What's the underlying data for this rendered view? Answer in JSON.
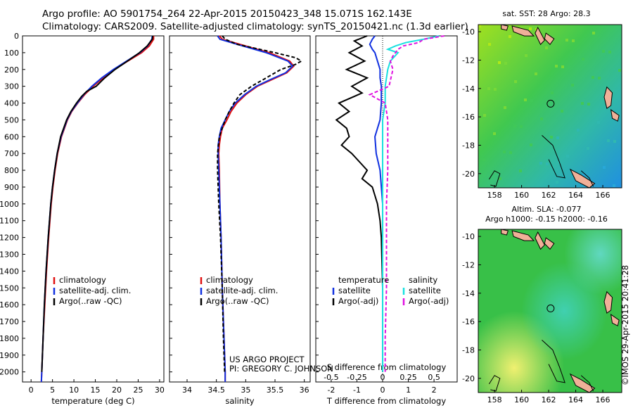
{
  "header": {
    "line1": "Argo profile: AO 5901754_264 22-Apr-2015 20150423_348 15.071S 162.143E",
    "line2": "Climatology: CARS2009. Satellite-adjusted climatology: synTS_20150421.nc (1.3d earlier)"
  },
  "colors": {
    "climatology": "#e01010",
    "satellite": "#1030e0",
    "argo": "#000000",
    "sat_salinity": "#18e0e0",
    "argo_salinity": "#e010e0"
  },
  "depth_axis": {
    "ticks": [
      0,
      100,
      200,
      300,
      400,
      500,
      600,
      700,
      800,
      900,
      1000,
      1100,
      1200,
      1300,
      1400,
      1500,
      1600,
      1700,
      1800,
      1900,
      2000
    ],
    "min": 0,
    "max": 2060
  },
  "chart_data": [
    {
      "id": "temperature",
      "type": "line",
      "xlabel": "temperature (deg C)",
      "xlim": [
        -2,
        31
      ],
      "xticks": [
        0,
        5,
        10,
        15,
        20,
        25,
        30
      ],
      "ylim": [
        0,
        2060
      ],
      "legend": [
        "climatology",
        "satellite-adj. clim.",
        "Argo(..raw -QC)"
      ],
      "series": [
        {
          "name": "climatology",
          "color_key": "climatology",
          "dashed": false,
          "depth": [
            0,
            20,
            60,
            100,
            150,
            200,
            250,
            300,
            350,
            400,
            450,
            500,
            600,
            700,
            800,
            900,
            1000,
            1200,
            1400,
            1600,
            1800,
            2000,
            2060
          ],
          "values": [
            28.6,
            28.6,
            27.6,
            25.8,
            22.6,
            19.4,
            16.8,
            14.5,
            12.5,
            10.9,
            9.5,
            8.5,
            7.1,
            6.2,
            5.6,
            5.1,
            4.7,
            4.1,
            3.6,
            3.2,
            2.8,
            2.5,
            2.4
          ]
        },
        {
          "name": "satellite-adj. clim.",
          "color_key": "satellite",
          "dashed": false,
          "depth": [
            0,
            20,
            60,
            100,
            150,
            200,
            250,
            300,
            350,
            400,
            450,
            500,
            600,
            700,
            800,
            900,
            1000,
            1200,
            1400,
            1600,
            1800,
            2000,
            2060
          ],
          "values": [
            28.3,
            28.2,
            27.2,
            25.4,
            22.3,
            19.2,
            16.5,
            14.2,
            12.3,
            10.8,
            9.4,
            8.4,
            7.0,
            6.1,
            5.5,
            5.0,
            4.6,
            4.0,
            3.5,
            3.1,
            2.8,
            2.5,
            2.4
          ]
        },
        {
          "name": "Argo(..raw -QC)",
          "color_key": "argo",
          "dashed": false,
          "depth": [
            0,
            20,
            60,
            100,
            150,
            200,
            250,
            300,
            330,
            360,
            400,
            450,
            500,
            600,
            700,
            800,
            900,
            1000,
            1200,
            1400,
            1600,
            1800,
            2000
          ],
          "values": [
            28.4,
            28.3,
            27.1,
            25.3,
            22.5,
            19.6,
            17.2,
            15.2,
            13.0,
            11.8,
            10.6,
            9.3,
            8.3,
            6.9,
            6.1,
            5.5,
            5.0,
            4.6,
            4.0,
            3.5,
            3.1,
            2.8,
            2.5
          ]
        }
      ]
    },
    {
      "id": "salinity",
      "type": "line",
      "xlabel": "salinity",
      "xlim": [
        33.7,
        36.1
      ],
      "xticks": [
        34,
        34.5,
        35,
        35.5,
        36
      ],
      "xticklabels": [
        "34",
        "34.5",
        "35",
        "35.5",
        "36"
      ],
      "ylim": [
        0,
        2060
      ],
      "legend": [
        "climatology",
        "satellite-adj. clim.",
        "Argo(..raw -QC)"
      ],
      "series": [
        {
          "name": "climatology",
          "color_key": "climatology",
          "dashed": false,
          "depth": [
            0,
            20,
            50,
            100,
            150,
            180,
            220,
            260,
            300,
            350,
            400,
            450,
            500,
            550,
            600,
            650,
            700,
            800,
            1000,
            1200,
            1500,
            1800,
            2000,
            2060
          ],
          "values": [
            34.55,
            34.6,
            34.9,
            35.4,
            35.75,
            35.82,
            35.7,
            35.45,
            35.2,
            35.0,
            34.85,
            34.75,
            34.68,
            34.6,
            34.57,
            34.55,
            34.54,
            34.55,
            34.56,
            34.58,
            34.6,
            34.63,
            34.65,
            34.65
          ]
        },
        {
          "name": "satellite-adj. clim.",
          "color_key": "satellite",
          "dashed": false,
          "depth": [
            0,
            20,
            50,
            100,
            150,
            180,
            220,
            260,
            300,
            350,
            400,
            450,
            500,
            550,
            600,
            650,
            700,
            800,
            1000,
            1200,
            1500,
            1800,
            2000,
            2060
          ],
          "values": [
            34.52,
            34.56,
            34.85,
            35.35,
            35.72,
            35.8,
            35.68,
            35.42,
            35.18,
            34.98,
            34.82,
            34.72,
            34.65,
            34.58,
            34.55,
            34.53,
            34.53,
            34.54,
            34.56,
            34.58,
            34.6,
            34.63,
            34.65,
            34.65
          ]
        },
        {
          "name": "Argo(..raw -QC)",
          "color_key": "argo",
          "dashed": true,
          "depth": [
            0,
            20,
            50,
            100,
            130,
            150,
            170,
            200,
            250,
            300,
            350,
            400,
            450,
            500,
            600,
            700,
            800,
            1000,
            1200,
            1500,
            1800,
            2000
          ],
          "values": [
            34.6,
            34.65,
            34.85,
            35.5,
            35.85,
            35.95,
            35.85,
            35.6,
            35.35,
            35.1,
            34.9,
            34.8,
            34.72,
            34.65,
            34.55,
            34.52,
            34.52,
            34.54,
            34.57,
            34.6,
            34.62,
            34.64
          ]
        }
      ]
    },
    {
      "id": "difference",
      "type": "line",
      "xlabel": "T difference from climatology",
      "xlabel2": "S difference from climatology",
      "xlim": [
        -2.6,
        2.9
      ],
      "xticks": [
        -2,
        -1,
        0,
        1,
        2
      ],
      "xticks_top": [
        -0.5,
        -0.25,
        0,
        0.25,
        0.5
      ],
      "xticklabels_top": [
        "-0.5",
        "-0.25",
        "0",
        "0.25",
        "0.5"
      ],
      "s_scale_factor": 4,
      "ylim": [
        0,
        2060
      ],
      "legend_left_title": "temperature",
      "legend_right_title": "salinity",
      "legend": [
        "satellite",
        "Argo(-adj)",
        "satellite",
        "Argo(-adj)"
      ],
      "series": [
        {
          "name": "T satellite",
          "color_key": "satellite",
          "dashed": false,
          "depth": [
            0,
            20,
            50,
            80,
            100,
            150,
            200,
            250,
            300,
            400,
            500,
            600,
            700,
            800,
            1000,
            1500,
            2000
          ],
          "values": [
            -0.3,
            -0.4,
            -0.5,
            -0.4,
            -0.3,
            -0.2,
            -0.1,
            -0.1,
            -0.05,
            -0.05,
            -0.1,
            -0.3,
            -0.25,
            -0.1,
            0.0,
            0.0,
            0.0
          ]
        },
        {
          "name": "T Argo(-adj)",
          "color_key": "argo",
          "dashed": false,
          "depth": [
            0,
            30,
            60,
            100,
            150,
            200,
            250,
            300,
            340,
            400,
            450,
            500,
            550,
            600,
            650,
            700,
            750,
            800,
            850,
            900,
            950,
            1000,
            1100,
            1200,
            1500,
            2000
          ],
          "values": [
            -0.6,
            -1.1,
            -0.8,
            -1.3,
            -0.7,
            -1.4,
            -0.6,
            -1.2,
            -0.8,
            -1.7,
            -1.3,
            -1.8,
            -1.4,
            -1.3,
            -1.6,
            -1.2,
            -0.9,
            -0.6,
            -0.8,
            -0.4,
            -0.3,
            -0.2,
            -0.1,
            -0.05,
            0.0,
            0.0
          ]
        },
        {
          "name": "S satellite",
          "color_key": "sat_salinity",
          "dashed": false,
          "depth": [
            0,
            20,
            40,
            60,
            80,
            100,
            150,
            200,
            300,
            400,
            500,
            700,
            1000,
            1500,
            2000
          ],
          "values": [
            2.2,
            1.6,
            0.9,
            0.5,
            0.2,
            0.6,
            0.3,
            0.2,
            0.1,
            0.1,
            0.0,
            0.0,
            0.0,
            0.0,
            0.0
          ]
        },
        {
          "name": "S Argo(-adj)",
          "color_key": "argo_salinity",
          "dashed": true,
          "depth": [
            0,
            20,
            40,
            60,
            80,
            100,
            120,
            150,
            200,
            300,
            350,
            400,
            500,
            600,
            700,
            800,
            1000,
            1200,
            1500,
            1800,
            2000
          ],
          "values": [
            2.4,
            1.6,
            1.4,
            0.8,
            0.6,
            0.5,
            0.4,
            0.3,
            0.4,
            0.25,
            -0.5,
            0.1,
            0.2,
            0.2,
            0.2,
            0.2,
            0.15,
            0.15,
            0.15,
            0.1,
            0.1
          ]
        }
      ]
    }
  ],
  "annotation": {
    "line1": "US ARGO PROJECT",
    "line2": "PI: GREGORY C. JOHNSON"
  },
  "maps": [
    {
      "id": "sst",
      "title": "sat. SST: 28 Argo: 28.3",
      "lon_ticks": [
        158,
        160,
        162,
        164,
        166
      ],
      "lat_ticks": [
        -10,
        -12,
        -14,
        -16,
        -18,
        -20
      ],
      "lon_range": [
        156.8,
        167.4
      ],
      "lat_range": [
        -9.5,
        -21
      ],
      "profile_lon": 162.143,
      "profile_lat": -15.071
    },
    {
      "id": "sla",
      "title1": "Altim. SLA: -0.077",
      "title2": "Argo h1000: -0.15 h2000: -0.16",
      "lon_ticks": [
        158,
        160,
        162,
        164,
        166
      ],
      "lat_ticks": [
        -10,
        -12,
        -14,
        -16,
        -18,
        -20
      ],
      "lon_range": [
        156.8,
        167.4
      ],
      "lat_range": [
        -9.5,
        -21
      ],
      "profile_lon": 162.143,
      "profile_lat": -15.071
    }
  ],
  "credit": "©IMOS 29-Apr-2015 20:41:28"
}
